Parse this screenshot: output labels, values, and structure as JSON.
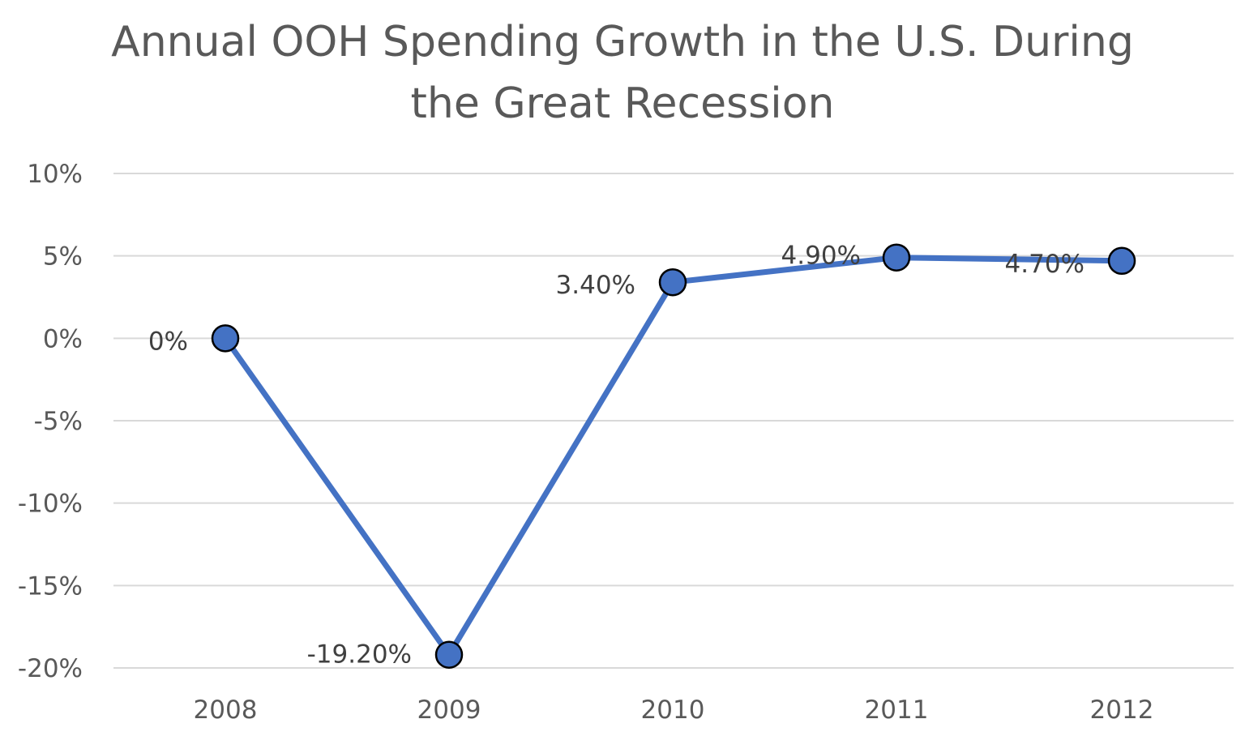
{
  "chart_data": {
    "type": "line",
    "title_lines": [
      "Annual OOH Spending Growth in the U.S. During",
      "the Great Recession"
    ],
    "categories": [
      "2008",
      "2009",
      "2010",
      "2011",
      "2012"
    ],
    "series": [
      {
        "values": [
          0,
          -19.2,
          3.4,
          4.9,
          4.7
        ],
        "data_labels": [
          "0%",
          "-19.20%",
          "3.40%",
          "4.90%",
          "4.70%"
        ],
        "color": "#4472C4",
        "marker_color": "#4472C4",
        "marker_edge": "#000000"
      }
    ],
    "y_ticks": [
      10,
      5,
      0,
      -5,
      -10,
      -15,
      -20
    ],
    "y_tick_labels": [
      "10%",
      "5%",
      "0%",
      "-5%",
      "-10%",
      "-15%",
      "-20%"
    ],
    "ylim": [
      -20,
      10
    ],
    "grid": true,
    "gridline_color": "#D9D9D9",
    "text_color": "#595959",
    "legend": "none"
  }
}
